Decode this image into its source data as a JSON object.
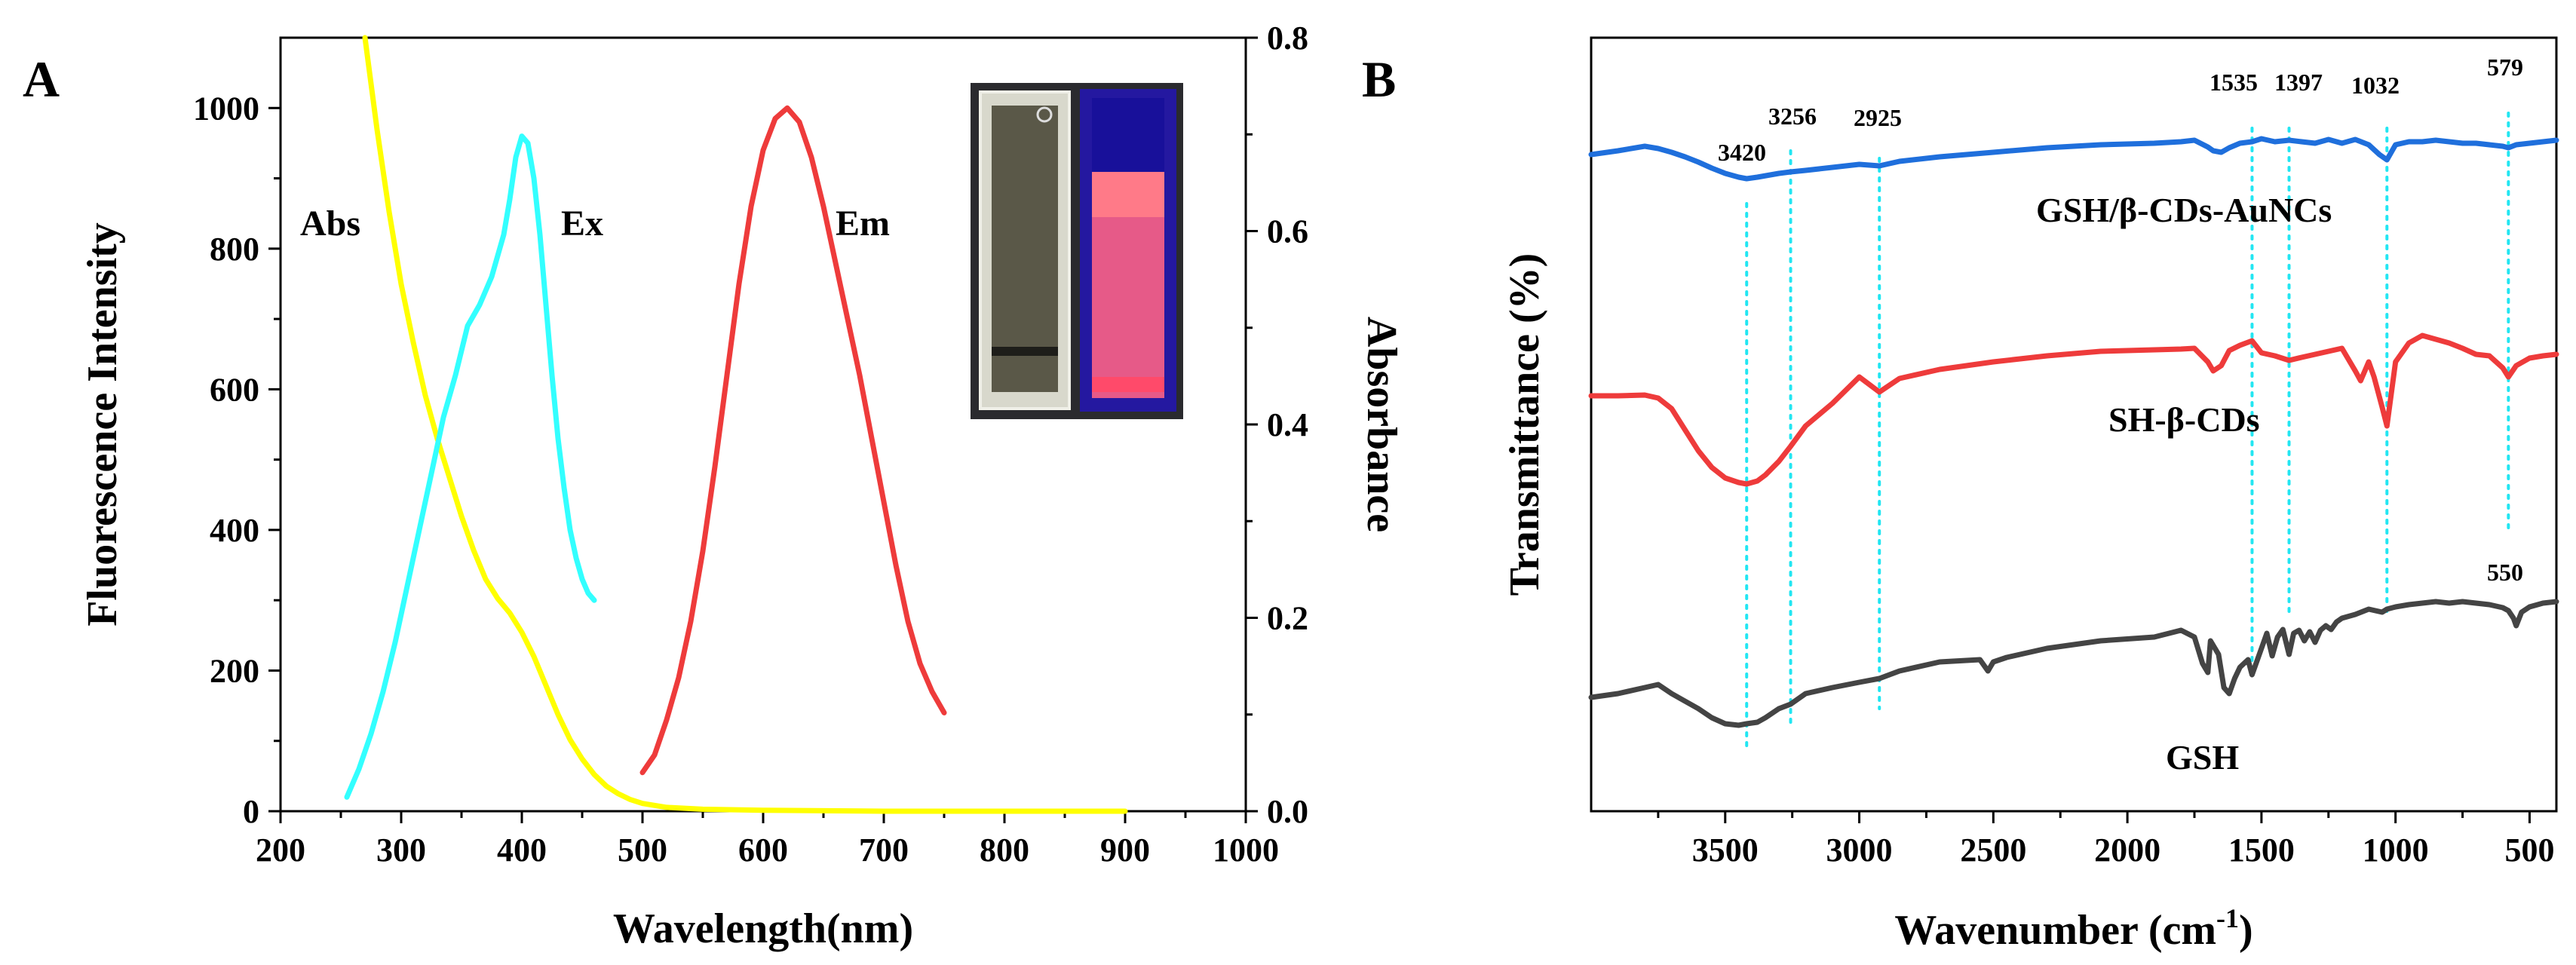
{
  "panels": {
    "A": {
      "panel_label": "A",
      "xlabel": "Wavelength(nm)",
      "ylabel_left": "Fluorescence Intensity",
      "ylabel_right": "Absorbance",
      "xticks": [
        "200",
        "300",
        "400",
        "500",
        "600",
        "700",
        "800",
        "900",
        "1000"
      ],
      "yticks_left": [
        "0",
        "200",
        "400",
        "600",
        "800",
        "1000"
      ],
      "yticks_right": [
        "0.0",
        "0.2",
        "0.4",
        "0.6",
        "0.8"
      ],
      "annotations": {
        "abs": "Abs",
        "ex": "Ex",
        "em": "Em"
      },
      "inset": {
        "visible_cuvette": "daylight",
        "uv_cuvette": "UV"
      }
    },
    "B": {
      "panel_label": "B",
      "xlabel_main": "Wavenumber (cm",
      "xlabel_sup": "-1",
      "xlabel_end": ")",
      "ylabel": "Transmittance (%)",
      "xticks": [
        "3500",
        "3000",
        "2500",
        "2000",
        "1500",
        "1000",
        "500"
      ],
      "peak_labels": {
        "p3420": "3420",
        "p3256": "3256",
        "p2925": "2925",
        "p1535": "1535",
        "p1397": "1397",
        "p1032": "1032",
        "p579": "579",
        "p550": "550"
      },
      "series_labels": {
        "top": "GSH/β-CDs-AuNCs",
        "mid": "SH-β-CDs",
        "bot": "GSH"
      }
    }
  },
  "colors": {
    "abs": "#ffff00",
    "ex": "#33ffff",
    "em": "#ee3b3b",
    "ft_top": "#1f6fdc",
    "ft_mid": "#ee3b3b",
    "ft_bot": "#444444",
    "guide": "#22e6f2"
  },
  "chart_data": [
    {
      "type": "line",
      "panel": "A",
      "xlabel": "Wavelength(nm)",
      "xlim": [
        200,
        1000
      ],
      "ylim_left": [
        0,
        1100
      ],
      "ylim_right": [
        0,
        0.8
      ],
      "series": [
        {
          "name": "Abs",
          "axis": "right",
          "x": [
            270,
            280,
            290,
            300,
            310,
            320,
            330,
            340,
            350,
            360,
            370,
            380,
            390,
            400,
            410,
            420,
            430,
            440,
            450,
            460,
            470,
            480,
            490,
            500,
            520,
            550,
            600,
            700,
            800,
            900
          ],
          "y": [
            0.8,
            0.705,
            0.62,
            0.545,
            0.485,
            0.43,
            0.385,
            0.345,
            0.305,
            0.27,
            0.24,
            0.22,
            0.205,
            0.185,
            0.16,
            0.13,
            0.1,
            0.074,
            0.054,
            0.038,
            0.026,
            0.018,
            0.012,
            0.008,
            0.004,
            0.002,
            0.001,
            0.0,
            0.0,
            0.0
          ]
        },
        {
          "name": "Ex",
          "axis": "left",
          "x": [
            255,
            265,
            275,
            285,
            295,
            305,
            315,
            325,
            335,
            345,
            355,
            365,
            375,
            385,
            390,
            395,
            400,
            405,
            410,
            415,
            420,
            425,
            430,
            435,
            440,
            445,
            450,
            455,
            460
          ],
          "y": [
            20,
            60,
            110,
            170,
            240,
            320,
            400,
            480,
            560,
            620,
            690,
            720,
            760,
            820,
            870,
            930,
            960,
            950,
            900,
            820,
            720,
            620,
            530,
            460,
            400,
            360,
            330,
            310,
            300
          ]
        },
        {
          "name": "Em",
          "axis": "left",
          "x": [
            500,
            510,
            520,
            530,
            540,
            550,
            560,
            570,
            580,
            590,
            600,
            610,
            620,
            630,
            640,
            650,
            660,
            670,
            680,
            690,
            700,
            710,
            720,
            730,
            740,
            750
          ],
          "y": [
            55,
            80,
            130,
            190,
            270,
            370,
            490,
            620,
            750,
            860,
            940,
            985,
            1000,
            980,
            930,
            860,
            780,
            700,
            620,
            530,
            440,
            350,
            270,
            210,
            170,
            140
          ]
        }
      ]
    },
    {
      "type": "line",
      "panel": "B",
      "xlabel": "Wavenumber (cm-1)",
      "ylabel": "Transmittance (%)",
      "xlim": [
        4000,
        400
      ],
      "series": [
        {
          "name": "GSH/β-CDs-AuNCs",
          "x": [
            4000,
            3900,
            3800,
            3750,
            3700,
            3650,
            3600,
            3550,
            3500,
            3450,
            3420,
            3380,
            3300,
            3256,
            3200,
            3100,
            3000,
            2925,
            2850,
            2700,
            2500,
            2300,
            2100,
            1900,
            1800,
            1750,
            1700,
            1680,
            1650,
            1620,
            1580,
            1535,
            1500,
            1450,
            1397,
            1350,
            1300,
            1250,
            1200,
            1150,
            1100,
            1060,
            1032,
            1000,
            950,
            900,
            850,
            800,
            750,
            700,
            650,
            600,
            579,
            550,
            500,
            450,
            400
          ],
          "y": [
            55,
            50,
            44,
            47,
            52,
            58,
            65,
            73,
            80,
            85,
            87,
            85,
            80,
            78,
            76,
            72,
            68,
            70,
            64,
            58,
            52,
            46,
            42,
            40,
            38,
            36,
            45,
            50,
            52,
            46,
            40,
            38,
            34,
            38,
            36,
            38,
            40,
            35,
            40,
            35,
            42,
            55,
            62,
            42,
            38,
            38,
            36,
            38,
            40,
            40,
            42,
            44,
            46,
            42,
            40,
            38,
            36
          ]
        },
        {
          "name": "SH-β-CDs",
          "x": [
            4000,
            3900,
            3800,
            3750,
            3700,
            3650,
            3600,
            3550,
            3500,
            3450,
            3420,
            3380,
            3350,
            3300,
            3256,
            3200,
            3100,
            3000,
            2925,
            2850,
            2700,
            2500,
            2300,
            2100,
            1900,
            1800,
            1750,
            1700,
            1680,
            1650,
            1620,
            1580,
            1535,
            1500,
            1450,
            1397,
            1350,
            1300,
            1250,
            1200,
            1150,
            1130,
            1100,
            1080,
            1050,
            1032,
            1000,
            950,
            900,
            850,
            800,
            750,
            700,
            650,
            600,
            579,
            550,
            500,
            450,
            400
          ],
          "y": [
            245,
            245,
            244,
            248,
            262,
            290,
            318,
            340,
            354,
            360,
            362,
            358,
            350,
            332,
            312,
            285,
            255,
            220,
            240,
            222,
            210,
            200,
            192,
            186,
            184,
            183,
            182,
            200,
            212,
            205,
            185,
            178,
            172,
            188,
            192,
            198,
            194,
            190,
            186,
            182,
            212,
            225,
            200,
            220,
            260,
            285,
            200,
            175,
            165,
            170,
            175,
            182,
            190,
            192,
            208,
            220,
            205,
            195,
            192,
            190
          ]
        },
        {
          "name": "GSH",
          "x": [
            4000,
            3900,
            3800,
            3750,
            3700,
            3650,
            3600,
            3550,
            3500,
            3450,
            3420,
            3380,
            3350,
            3300,
            3256,
            3200,
            3100,
            3000,
            2925,
            2850,
            2700,
            2550,
            2520,
            2500,
            2450,
            2300,
            2100,
            1900,
            1800,
            1750,
            1720,
            1700,
            1690,
            1660,
            1640,
            1620,
            1600,
            1580,
            1550,
            1535,
            1500,
            1480,
            1460,
            1440,
            1420,
            1397,
            1380,
            1360,
            1340,
            1320,
            1300,
            1280,
            1260,
            1240,
            1220,
            1200,
            1150,
            1100,
            1050,
            1032,
            1000,
            950,
            900,
            850,
            800,
            750,
            700,
            650,
            600,
            579,
            560,
            550,
            530,
            500,
            450,
            400
          ],
          "y": [
            425,
            420,
            412,
            408,
            420,
            430,
            440,
            452,
            460,
            462,
            460,
            458,
            452,
            440,
            434,
            420,
            412,
            405,
            400,
            390,
            378,
            375,
            390,
            378,
            372,
            360,
            350,
            345,
            336,
            345,
            380,
            392,
            350,
            368,
            412,
            420,
            400,
            385,
            375,
            395,
            360,
            340,
            370,
            345,
            335,
            368,
            340,
            336,
            350,
            338,
            352,
            336,
            330,
            335,
            325,
            320,
            315,
            308,
            312,
            308,
            305,
            302,
            300,
            298,
            300,
            298,
            300,
            302,
            306,
            310,
            320,
            330,
            312,
            305,
            300,
            298
          ]
        }
      ],
      "reference_lines": [
        3420,
        3256,
        2925,
        1535,
        1397,
        1032,
        579
      ]
    }
  ]
}
